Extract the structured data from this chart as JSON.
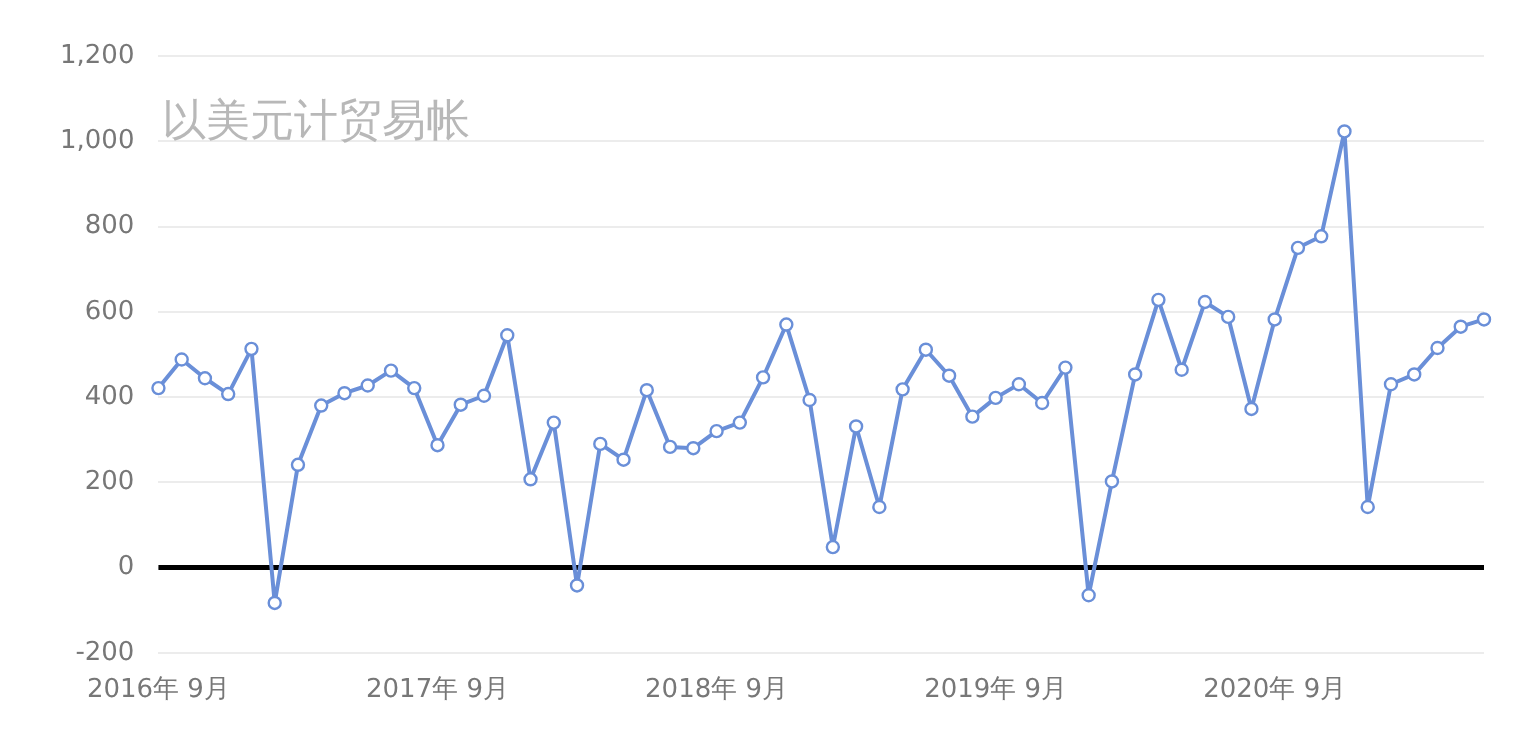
{
  "chart_data": {
    "type": "line",
    "title": "以美元计贸易帐",
    "categories": [
      "2016年 9月",
      null,
      null,
      null,
      null,
      null,
      null,
      null,
      null,
      null,
      null,
      null,
      "2017年 9月",
      null,
      null,
      null,
      null,
      null,
      null,
      null,
      null,
      null,
      null,
      null,
      "2018年 9月",
      null,
      null,
      null,
      null,
      null,
      null,
      null,
      null,
      null,
      null,
      null,
      "2019年 9月",
      null,
      null,
      null,
      null,
      null,
      null,
      null,
      null,
      null,
      null,
      null,
      "2020年 9月",
      null,
      null,
      null,
      null,
      null,
      null,
      null,
      null,
      null
    ],
    "series": [
      {
        "color": "#6a8fd8",
        "values": [
          421,
          488,
          444,
          407,
          513,
          -83,
          241,
          380,
          409,
          427,
          462,
          421,
          287,
          382,
          403,
          545,
          207,
          340,
          -42,
          290,
          253,
          416,
          283,
          280,
          320,
          340,
          446,
          570,
          393,
          48,
          331,
          142,
          418,
          511,
          450,
          354,
          398,
          430,
          386,
          469,
          -65,
          202,
          453,
          628,
          464,
          623,
          588,
          372,
          582,
          750,
          777,
          1023,
          142,
          430,
          453,
          515,
          565,
          582
        ]
      }
    ],
    "ylim": [
      -200,
      1200
    ],
    "yticks": [
      {
        "value": -200,
        "label": "-200"
      },
      0,
      200,
      400,
      600,
      800,
      {
        "value": 1000,
        "label": "1,000"
      },
      {
        "value": 1200,
        "label": "1,200"
      }
    ],
    "grid": "y",
    "marker": "circle",
    "line_style": "solid",
    "legend": false,
    "ref_lines": [
      {
        "axis": "y",
        "value": 0,
        "color": "#000000"
      }
    ]
  }
}
